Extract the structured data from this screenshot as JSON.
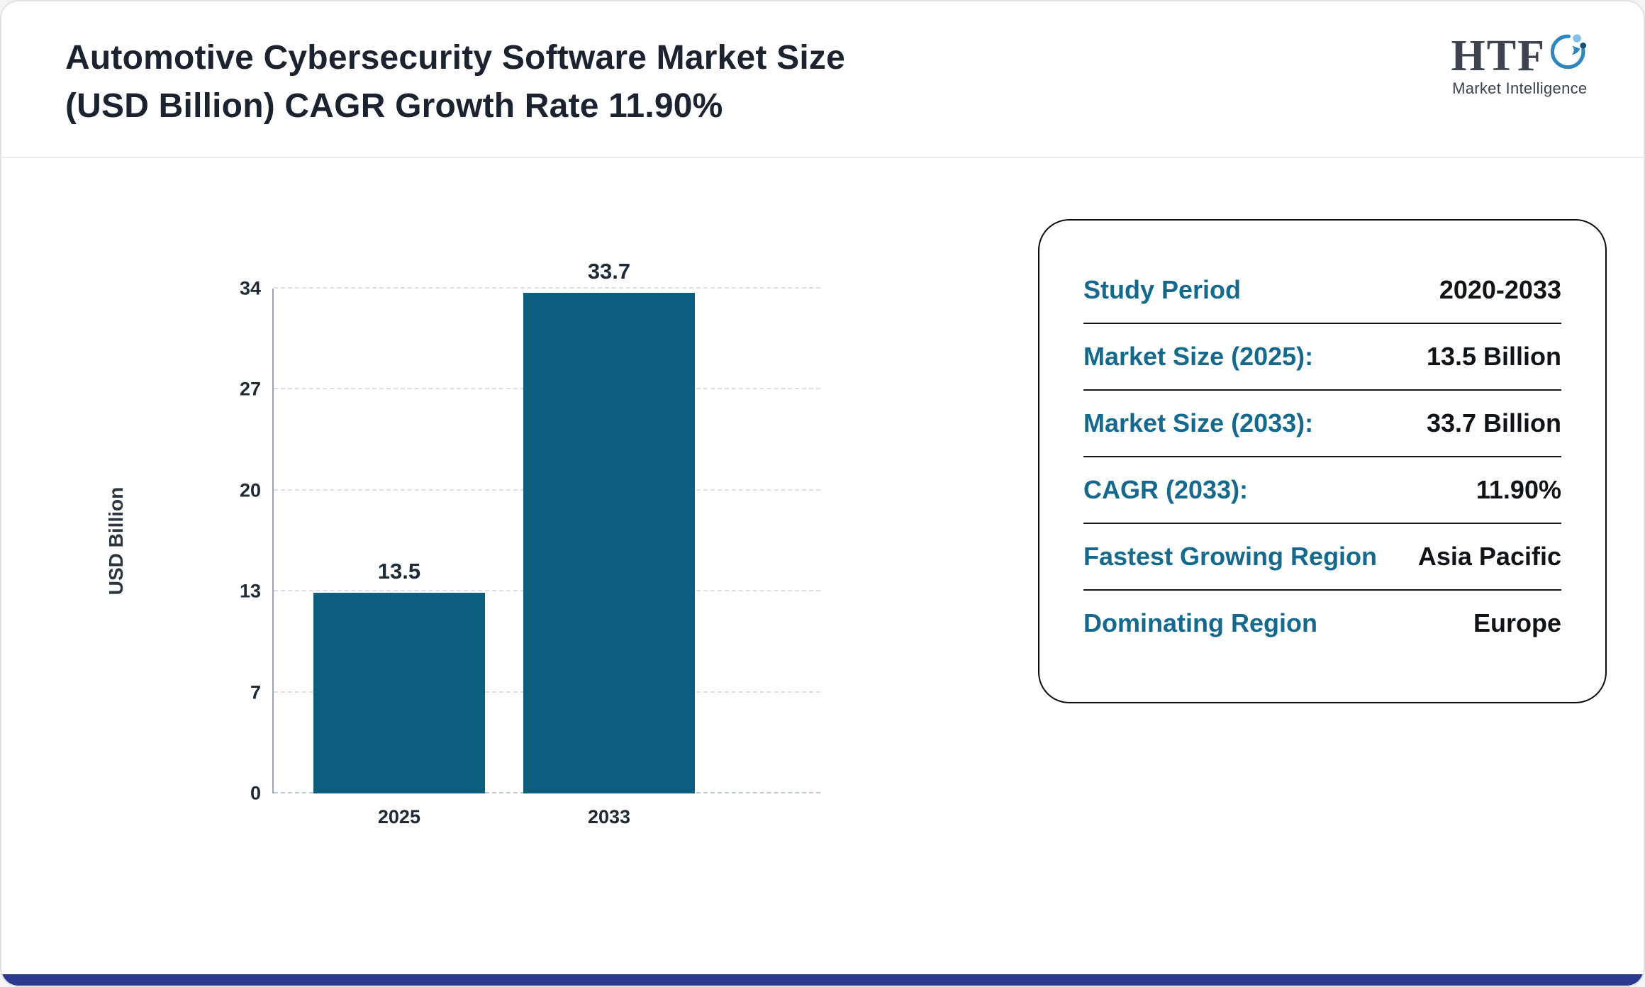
{
  "page": {
    "title_line1": "Automotive Cybersecurity Software Market Size",
    "title_line2": "(USD Billion) CAGR Growth Rate 11.90%"
  },
  "logo": {
    "text": "HTF",
    "subtext": "Market Intelligence"
  },
  "chart_data": {
    "type": "bar",
    "title": "Automotive Cybersecurity Software Market Size (USD Billion) CAGR Growth Rate 11.90%",
    "categories": [
      "2025",
      "2033"
    ],
    "values": [
      13.5,
      33.7
    ],
    "value_labels": [
      "13.5",
      "33.7"
    ],
    "xlabel": "",
    "ylabel": "USD Billion",
    "ylim": [
      0,
      34
    ],
    "yticks": [
      0,
      7,
      13,
      20,
      27,
      34
    ],
    "grid": "horizontal-dashed",
    "legend": "none",
    "bar_color": "#0d5d7e"
  },
  "info_panel": {
    "rows": [
      {
        "label": "Study Period",
        "value": "2020-2033"
      },
      {
        "label": "Market Size (2025):",
        "value": "13.5 Billion"
      },
      {
        "label": "Market Size (2033):",
        "value": "33.7 Billion"
      },
      {
        "label": "CAGR (2033):",
        "value": "11.90%"
      },
      {
        "label": "Fastest Growing Region",
        "value": "Asia Pacific"
      },
      {
        "label": "Dominating Region",
        "value": "Europe"
      }
    ]
  },
  "colors": {
    "bar": "#0d5d7e",
    "label_teal": "#15698c",
    "title_dark": "#1b2330",
    "bottom_strip": "#2b3990"
  }
}
